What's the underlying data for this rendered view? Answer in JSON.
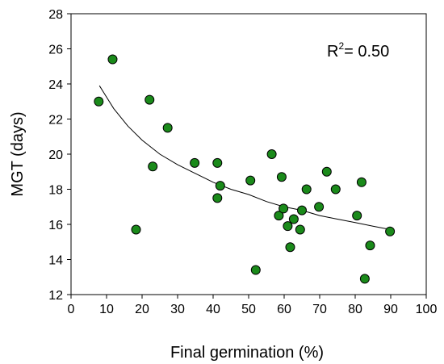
{
  "chart_data": {
    "type": "scatter",
    "xlabel": "Final germination (%)",
    "ylabel": "MGT (days)",
    "xlim": [
      0,
      100
    ],
    "ylim": [
      12,
      28
    ],
    "xticks": [
      0,
      10,
      20,
      30,
      40,
      50,
      60,
      70,
      80,
      90,
      100
    ],
    "yticks": [
      12,
      14,
      16,
      18,
      20,
      22,
      24,
      26,
      28
    ],
    "grid": false,
    "marker_color": "#1a8a1a",
    "marker_edge": "#000000",
    "annotation": {
      "prefix": "R",
      "sup": "2",
      "suffix": "= 0.50",
      "position": "top-right"
    },
    "points": [
      {
        "x": 7.8,
        "y": 23.0
      },
      {
        "x": 11.7,
        "y": 25.4
      },
      {
        "x": 18.3,
        "y": 15.7
      },
      {
        "x": 22.1,
        "y": 23.1
      },
      {
        "x": 23.0,
        "y": 19.3
      },
      {
        "x": 27.2,
        "y": 21.5
      },
      {
        "x": 34.8,
        "y": 19.5
      },
      {
        "x": 41.2,
        "y": 19.5
      },
      {
        "x": 41.2,
        "y": 17.5
      },
      {
        "x": 42.0,
        "y": 18.2
      },
      {
        "x": 50.5,
        "y": 18.5
      },
      {
        "x": 52.0,
        "y": 13.4
      },
      {
        "x": 56.5,
        "y": 20.0
      },
      {
        "x": 58.5,
        "y": 16.5
      },
      {
        "x": 59.3,
        "y": 18.7
      },
      {
        "x": 59.8,
        "y": 16.9
      },
      {
        "x": 61.0,
        "y": 15.9
      },
      {
        "x": 61.7,
        "y": 14.7
      },
      {
        "x": 62.7,
        "y": 16.3
      },
      {
        "x": 64.5,
        "y": 15.7
      },
      {
        "x": 65.0,
        "y": 16.8
      },
      {
        "x": 66.3,
        "y": 18.0
      },
      {
        "x": 69.8,
        "y": 17.0
      },
      {
        "x": 72.0,
        "y": 19.0
      },
      {
        "x": 74.5,
        "y": 18.0
      },
      {
        "x": 80.5,
        "y": 16.5
      },
      {
        "x": 81.8,
        "y": 18.4
      },
      {
        "x": 82.7,
        "y": 12.9
      },
      {
        "x": 84.2,
        "y": 14.8
      },
      {
        "x": 89.8,
        "y": 15.6
      }
    ],
    "trend": {
      "type": "curve",
      "x": [
        8,
        12,
        16,
        20,
        25,
        30,
        35,
        40,
        45,
        50,
        55,
        60,
        65,
        70,
        75,
        80,
        85,
        90
      ],
      "y": [
        23.9,
        22.6,
        21.6,
        20.8,
        20.0,
        19.4,
        18.9,
        18.4,
        18.0,
        17.7,
        17.3,
        17.0,
        16.8,
        16.5,
        16.3,
        16.1,
        15.9,
        15.7
      ]
    }
  }
}
